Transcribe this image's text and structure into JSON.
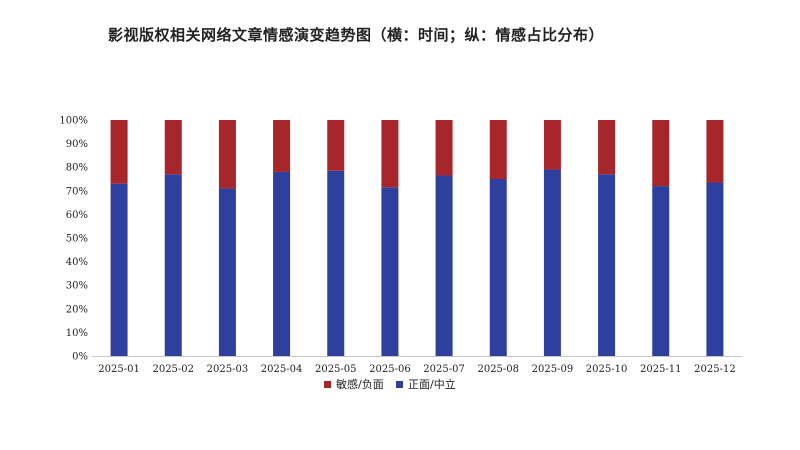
{
  "chart_data": {
    "type": "bar",
    "stacked": true,
    "title": "影视版权相关网络文章情感演变趋势图（横：时间；纵：情感占比分布）",
    "categories": [
      "2025-01",
      "2025-02",
      "2025-03",
      "2025-04",
      "2025-05",
      "2025-06",
      "2025-07",
      "2025-08",
      "2025-09",
      "2025-10",
      "2025-11",
      "2025-12"
    ],
    "series": [
      {
        "name": "正面/中立",
        "color": "#2f3f9e",
        "values": [
          73,
          77,
          71,
          78,
          78.5,
          71.5,
          76.5,
          75,
          79,
          77,
          72,
          73.5
        ]
      },
      {
        "name": "敏感/负面",
        "color": "#a6262b",
        "values": [
          27,
          23,
          29,
          22,
          21.5,
          28.5,
          23.5,
          25,
          21,
          23,
          28,
          26.5
        ]
      }
    ],
    "y_ticks": [
      "0%",
      "10%",
      "20%",
      "30%",
      "40%",
      "50%",
      "60%",
      "70%",
      "80%",
      "90%",
      "100%"
    ],
    "ylim": [
      0,
      100
    ],
    "legend": [
      "敏感/负面",
      "正面/中立"
    ],
    "legend_position": "bottom",
    "grid": false
  }
}
